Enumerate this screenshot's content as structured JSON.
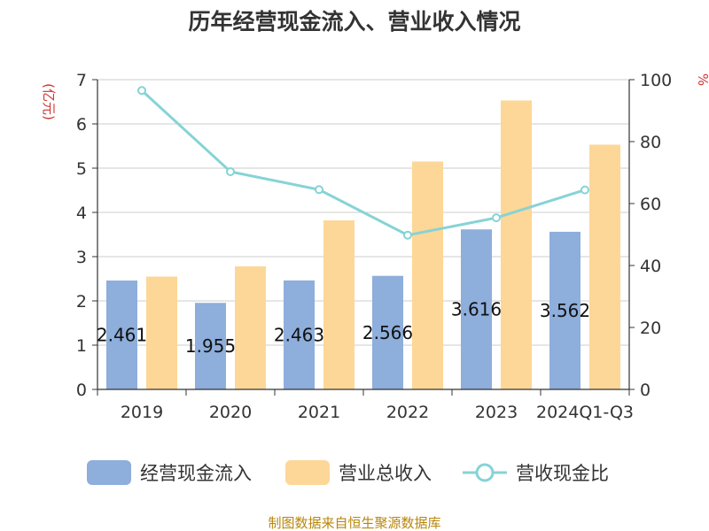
{
  "chart_data": {
    "type": "bar",
    "title": "历年经营现金流入、营业收入情况",
    "categories": [
      "2019",
      "2020",
      "2021",
      "2022",
      "2023",
      "2024Q1-Q3"
    ],
    "series": [
      {
        "name": "经营现金流入",
        "type": "bar",
        "axis": "left",
        "color": "#8eaedb",
        "values": [
          2.461,
          1.955,
          2.463,
          2.566,
          3.616,
          3.562
        ],
        "labels": [
          "2.461",
          "1.955",
          "2.463",
          "2.566",
          "3.616",
          "3.562"
        ]
      },
      {
        "name": "营业总收入",
        "type": "bar",
        "axis": "left",
        "color": "#fdd797",
        "values": [
          2.55,
          2.78,
          3.82,
          5.15,
          6.53,
          5.53
        ]
      },
      {
        "name": "营收现金比",
        "type": "line",
        "axis": "right",
        "color": "#86d3d6",
        "values": [
          96.5,
          70.3,
          64.5,
          49.8,
          55.4,
          64.4
        ]
      }
    ],
    "left_axis": {
      "unit": "(亿元)",
      "min": 0,
      "max": 7,
      "ticks": [
        "0",
        "1",
        "2",
        "3",
        "4",
        "5",
        "6",
        "7"
      ]
    },
    "right_axis": {
      "unit": "%",
      "min": 0,
      "max": 100,
      "ticks": [
        "0",
        "20",
        "40",
        "60",
        "80",
        "100"
      ]
    },
    "grid": true,
    "legend_position": "bottom"
  },
  "source": "制图数据来自恒生聚源数据库"
}
